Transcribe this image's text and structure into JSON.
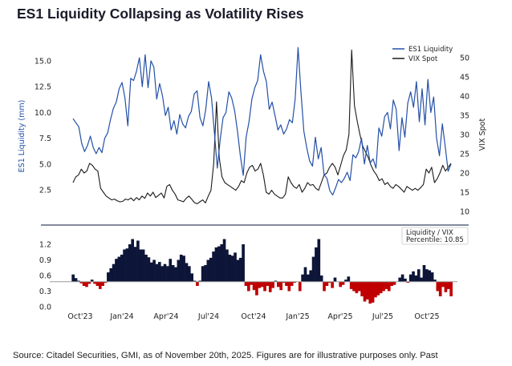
{
  "title": "ES1 Liquidity Collapsing as Volatility Rises",
  "source": "Source: Citadel Securities, GMI, as of November 20th, 2025. Figures are for illustrative purposes only. Past",
  "colors": {
    "liquidity": "#2450a8",
    "vix": "#1a1a1a",
    "positive": "#0d1538",
    "negative": "#c00000",
    "separator": "#5a6478",
    "baseline": "#9a9a9a"
  },
  "chart_data": [
    {
      "type": "line",
      "title": "",
      "legend": {
        "placement": "top-right",
        "entries": [
          "ES1 Liquidity",
          "VIX Spot"
        ]
      },
      "x_ticks": [
        "Oct'23",
        "Jan'24",
        "Apr'24",
        "Jul'24",
        "Oct'24",
        "Jan'25",
        "Apr'25",
        "Jul'25",
        "Oct'25"
      ],
      "x_range": [
        "2023-09-25",
        "2025-11-20"
      ],
      "ylabel_left": "ES1 Liquidity (mm)",
      "ylabel_right": "VIX Spot",
      "y_left_ticks": [
        "15.0",
        "12.5",
        "10.0",
        "7.5",
        "5.0",
        "2.5"
      ],
      "y_left_range": [
        0.5,
        16.6
      ],
      "y_right_ticks": [
        "50",
        "45",
        "40",
        "35",
        "30",
        "25",
        "20",
        "15",
        "10"
      ],
      "y_right_range": [
        8,
        52
      ],
      "series": [
        {
          "name": "ES1 Liquidity",
          "axis": "left",
          "values": [
            9.4,
            9.0,
            8.6,
            7.0,
            6.2,
            6.8,
            7.7,
            6.6,
            6.0,
            6.6,
            6.1,
            7.5,
            8.0,
            9.3,
            10.4,
            11.0,
            12.3,
            12.9,
            11.4,
            8.7,
            13.3,
            13.1,
            14.0,
            15.3,
            12.5,
            15.6,
            12.4,
            15.0,
            14.4,
            11.3,
            12.8,
            11.6,
            9.7,
            10.5,
            8.3,
            9.2,
            7.9,
            9.8,
            8.9,
            8.5,
            9.6,
            10.1,
            11.8,
            12.1,
            9.5,
            8.7,
            10.3,
            13.0,
            11.4,
            8.0,
            4.6,
            7.4,
            9.5,
            10.0,
            12.0,
            11.4,
            10.2,
            8.2,
            5.8,
            3.9,
            7.6,
            9.1,
            11.3,
            12.4,
            13.1,
            15.6,
            14.0,
            13.0,
            10.3,
            11.0,
            9.7,
            8.3,
            8.8,
            7.9,
            8.4,
            9.3,
            9.0,
            11.3,
            16.3,
            12.0,
            8.2,
            6.6,
            5.3,
            4.8,
            7.6,
            5.5,
            6.6,
            4.0,
            3.6,
            2.4,
            2.0,
            2.7,
            3.5,
            3.2,
            3.6,
            4.2,
            3.4,
            5.9,
            5.6,
            6.2,
            7.5,
            5.0,
            6.8,
            5.1,
            5.5,
            4.6,
            8.5,
            7.7,
            9.6,
            10.0,
            8.4,
            11.2,
            10.3,
            6.3,
            9.5,
            7.6,
            10.9,
            12.0,
            10.5,
            13.0,
            9.1,
            12.3,
            8.8,
            13.2,
            10.0,
            11.5,
            7.5,
            5.8,
            8.9,
            6.7,
            4.3,
            5.0
          ]
        },
        {
          "name": "VIX Spot",
          "axis": "right",
          "values": [
            17.5,
            19.0,
            19.5,
            21.0,
            20.0,
            20.5,
            22.5,
            22.0,
            21.0,
            20.5,
            16.0,
            15.0,
            14.0,
            13.5,
            13.0,
            13.2,
            12.8,
            12.5,
            12.6,
            13.2,
            13.0,
            13.5,
            12.8,
            13.6,
            13.0,
            14.0,
            13.4,
            14.8,
            14.0,
            15.0,
            13.6,
            14.2,
            14.8,
            13.5,
            16.5,
            17.0,
            15.5,
            14.5,
            13.0,
            12.8,
            12.5,
            13.4,
            14.0,
            13.2,
            12.3,
            12.0,
            12.5,
            13.0,
            12.2,
            14.0,
            15.5,
            22.5,
            38.5,
            24.0,
            19.0,
            17.5,
            17.0,
            16.5,
            16.0,
            15.5,
            16.5,
            18.0,
            17.5,
            20.0,
            21.5,
            22.0,
            20.5,
            21.0,
            22.5,
            19.5,
            15.0,
            14.5,
            15.5,
            14.5,
            14.0,
            13.5,
            13.5,
            14.5,
            19.0,
            17.5,
            16.5,
            16.0,
            17.0,
            15.0,
            16.0,
            17.5,
            16.8,
            17.0,
            16.0,
            15.5,
            17.5,
            19.5,
            20.0,
            21.5,
            22.5,
            21.5,
            19.5,
            22.0,
            24.5,
            26.0,
            30.0,
            52.0,
            37.5,
            33.5,
            30.0,
            27.0,
            25.5,
            24.0,
            22.0,
            20.5,
            19.5,
            18.0,
            18.5,
            17.0,
            17.5,
            16.5,
            16.0,
            17.0,
            16.5,
            15.8,
            15.0,
            16.5,
            16.0,
            15.5,
            16.0,
            15.5,
            16.2,
            17.0,
            21.0,
            20.0,
            21.5,
            17.5,
            18.5,
            20.0,
            22.0,
            20.5,
            21.5,
            22.5
          ]
        }
      ]
    },
    {
      "type": "area",
      "title": "",
      "annotation": {
        "line1": "Liquidity / VIX",
        "line2": "Percentile: 10.85"
      },
      "y_ticks": [
        "1.2",
        "0.9",
        "0.6",
        "0.3",
        "0.0"
      ],
      "y_range": [
        0.0,
        1.35
      ],
      "baseline": 0.48,
      "x_ticks": [
        "Oct'23",
        "Jan'24",
        "Apr'24",
        "Jul'24",
        "Oct'24",
        "Jan'25",
        "Apr'25",
        "Jul'25",
        "Oct'25"
      ],
      "series": [
        {
          "name": "Liquidity / VIX",
          "values": [
            0.62,
            0.55,
            0.5,
            0.45,
            0.4,
            0.38,
            0.44,
            0.52,
            0.44,
            0.4,
            0.34,
            0.4,
            0.46,
            0.66,
            0.74,
            0.82,
            0.92,
            0.96,
            1.0,
            1.1,
            1.12,
            1.2,
            1.3,
            1.15,
            1.27,
            1.1,
            1.1,
            1.0,
            0.95,
            0.85,
            0.9,
            0.82,
            0.86,
            0.78,
            0.82,
            0.78,
            0.92,
            0.8,
            0.76,
            0.9,
            1.0,
            0.98,
            0.84,
            0.78,
            0.64,
            0.5,
            0.4,
            0.5,
            0.78,
            0.8,
            0.9,
            0.94,
            1.06,
            1.14,
            1.16,
            1.2,
            1.3,
            1.1,
            1.0,
            0.98,
            1.04,
            0.9,
            0.94,
            1.2,
            0.4,
            0.3,
            0.42,
            0.32,
            0.22,
            0.36,
            0.38,
            0.3,
            0.4,
            0.28,
            0.36,
            0.5,
            0.38,
            0.32,
            0.46,
            0.4,
            0.3,
            0.4,
            0.46,
            0.48,
            0.3,
            0.62,
            0.76,
            0.62,
            0.7,
            0.96,
            1.14,
            1.3,
            0.6,
            0.3,
            0.4,
            0.46,
            0.36,
            0.56,
            0.48,
            0.38,
            0.42,
            0.52,
            0.58,
            0.34,
            0.3,
            0.26,
            0.3,
            0.2,
            0.1,
            0.14,
            0.06,
            0.08,
            0.18,
            0.22,
            0.26,
            0.3,
            0.34,
            0.3,
            0.4,
            0.42,
            0.48,
            0.56,
            0.62,
            0.54,
            0.46,
            0.62,
            0.68,
            0.6,
            0.72,
            0.56,
            0.8,
            0.72,
            0.7,
            0.66,
            0.52,
            0.3,
            0.2,
            0.38,
            0.28,
            0.34,
            0.2
          ]
        }
      ]
    }
  ]
}
